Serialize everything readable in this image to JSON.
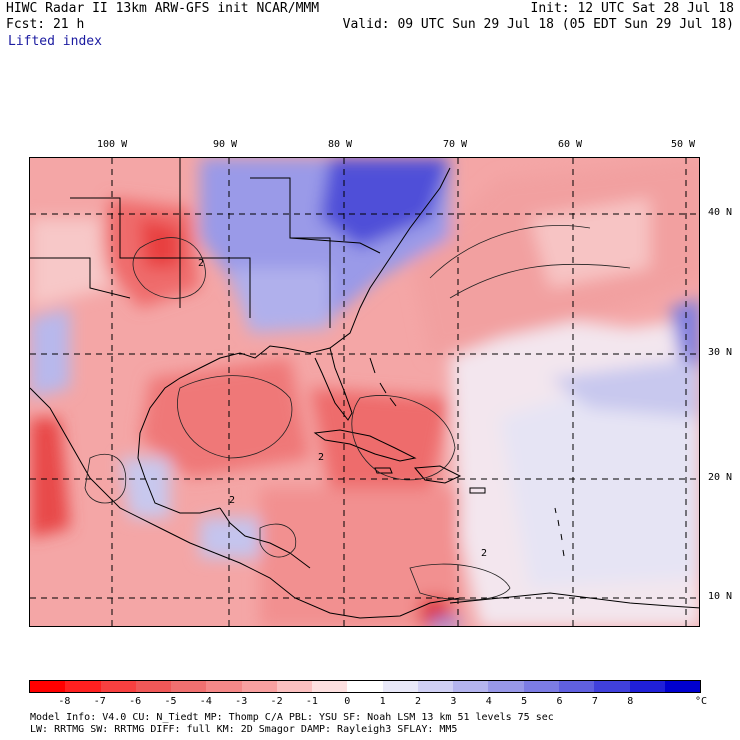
{
  "header": {
    "line1_left": "HIWC Radar II 13km ARW-GFS init   NCAR/MMM",
    "line1_right": "Init: 12 UTC Sat 28 Jul 18",
    "line2_left": "Fcst:   21 h",
    "line2_right": "Valid: 09 UTC Sun 29 Jul 18 (05 EDT Sun 29 Jul 18)",
    "field": "Lifted index"
  },
  "map": {
    "lon_labels": [
      "100 W",
      "90 W",
      "80 W",
      "70 W",
      "60 W",
      "50 W"
    ],
    "lat_labels": [
      "40 N",
      "30 N",
      "20 N",
      "10 N"
    ],
    "contour_labels": [
      "2",
      "2",
      "2",
      "2"
    ]
  },
  "colorbar": {
    "labels": [
      "-8",
      "-7",
      "-6",
      "-5",
      "-4",
      "-3",
      "-2",
      "-1",
      "0",
      "1",
      "2",
      "3",
      "4",
      "5",
      "6",
      "7",
      "8"
    ],
    "unit": "°C",
    "colors": [
      "#ff0000",
      "#ff2020",
      "#f84040",
      "#f05858",
      "#f07070",
      "#f58888",
      "#f8a0a0",
      "#fbc0c0",
      "#fde0e0",
      "#ffffff",
      "#e8e8f8",
      "#d0d0f4",
      "#b4b4ee",
      "#9898e8",
      "#7c7ce4",
      "#6060e0",
      "#4040dc",
      "#2020d8",
      "#0000d0"
    ]
  },
  "footer": {
    "line1": "Model Info: V4.0     CU: N_Tiedt  MP: Thomp C/A   PBL: YSU      SF: Noah LSM    13 km   51 levels   75 sec",
    "line2": "   LW: RRTMG    SW: RRTMG  DIFF: full   KM: 2D Smagor DAMP: Rayleigh3  SFLAY: MM5"
  }
}
